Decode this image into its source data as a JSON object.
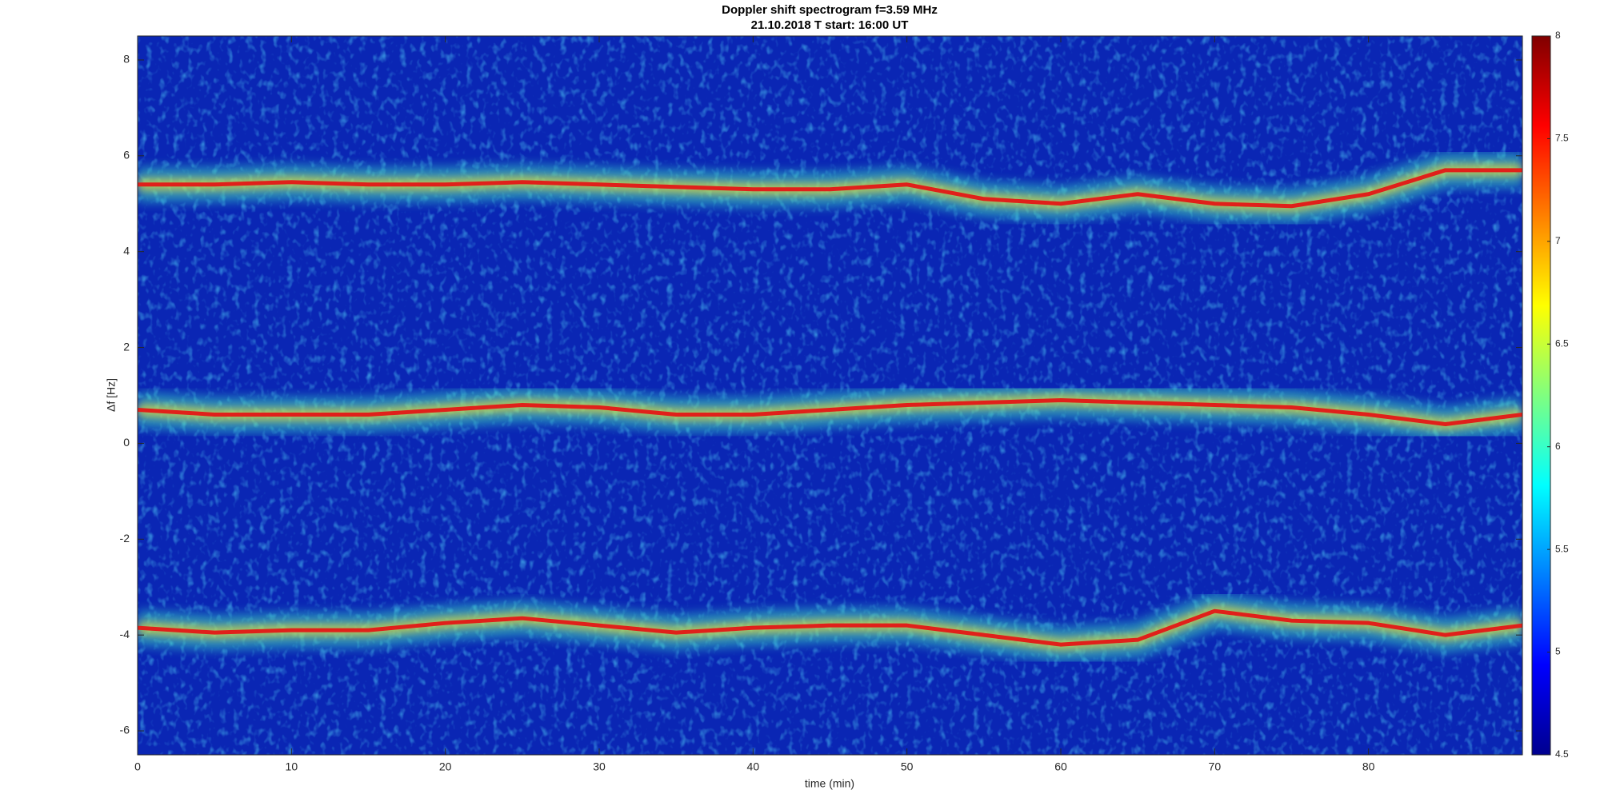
{
  "chart_data": {
    "type": "spectrogram",
    "title": "Doppler shift spectrogram f=3.59 MHz",
    "subtitle": "21.10.2018   T start: 16:00 UT",
    "x_label": "time (min)",
    "y_label": "Δf [Hz]",
    "x": [
      0,
      5,
      10,
      15,
      20,
      25,
      30,
      35,
      40,
      45,
      50,
      55,
      60,
      65,
      70,
      75,
      80,
      85,
      90
    ],
    "series": [
      {
        "color": "#e0201a",
        "values": [
          5.4,
          5.4,
          5.45,
          5.4,
          5.4,
          5.45,
          5.4,
          5.35,
          5.3,
          5.3,
          5.4,
          5.1,
          5.0,
          5.2,
          5.0,
          4.95,
          5.2,
          5.7,
          5.7
        ]
      },
      {
        "color": "#e0201a",
        "values": [
          0.7,
          0.6,
          0.6,
          0.6,
          0.7,
          0.8,
          0.75,
          0.6,
          0.6,
          0.7,
          0.8,
          0.85,
          0.9,
          0.85,
          0.8,
          0.75,
          0.6,
          0.4,
          0.6
        ]
      },
      {
        "color": "#e0201a",
        "values": [
          -3.85,
          -3.95,
          -3.9,
          -3.9,
          -3.75,
          -3.65,
          -3.8,
          -3.95,
          -3.85,
          -3.8,
          -3.8,
          -4.0,
          -4.2,
          -4.1,
          -3.5,
          -3.7,
          -3.75,
          -4.0,
          -3.8
        ]
      }
    ],
    "xlim": [
      0,
      90
    ],
    "xticks": [
      0,
      10,
      20,
      30,
      40,
      50,
      60,
      70,
      80
    ],
    "ylim": [
      -6.5,
      8.5
    ],
    "yticks": [
      -6,
      -4,
      -2,
      0,
      2,
      4,
      6,
      8
    ],
    "colormap": "jet",
    "clim": [
      4.5,
      8
    ],
    "cticks": [
      4.5,
      5,
      5.5,
      6,
      6.5,
      7,
      7.5,
      8
    ]
  }
}
